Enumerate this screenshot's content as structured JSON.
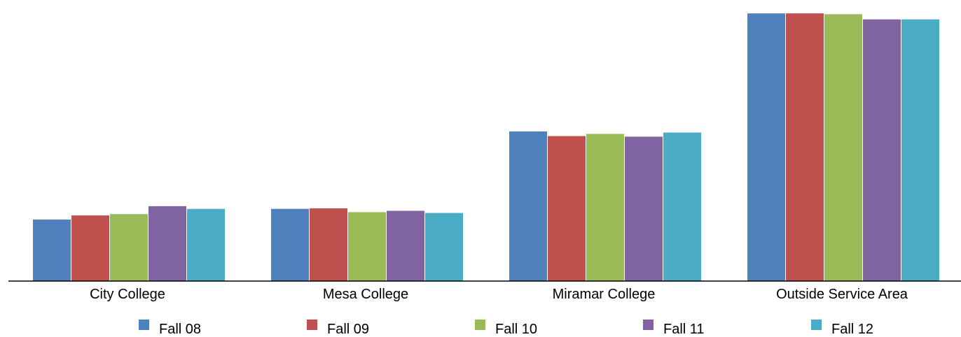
{
  "chart_data": {
    "type": "bar",
    "title": "",
    "xlabel": "",
    "ylabel": "",
    "ylim": [
      0,
      100
    ],
    "grid": false,
    "legend_position": "bottom",
    "categories": [
      "City College",
      "Mesa College",
      "Miramar College",
      "Outside Service Area"
    ],
    "series": [
      {
        "name": "Fall 08",
        "color": "#4F81BD",
        "values": [
          22.7,
          26.6,
          55.0,
          98.3
        ]
      },
      {
        "name": "Fall 09",
        "color": "#C0504D",
        "values": [
          24.2,
          26.8,
          53.3,
          98.3
        ]
      },
      {
        "name": "Fall 10",
        "color": "#9BBB59",
        "values": [
          24.7,
          25.4,
          54.1,
          98.0
        ]
      },
      {
        "name": "Fall 11",
        "color": "#8064A2",
        "values": [
          27.6,
          25.9,
          53.1,
          96.1
        ]
      },
      {
        "name": "Fall 12",
        "color": "#4BACC6",
        "values": [
          26.6,
          25.1,
          54.6,
          96.1
        ]
      }
    ]
  }
}
